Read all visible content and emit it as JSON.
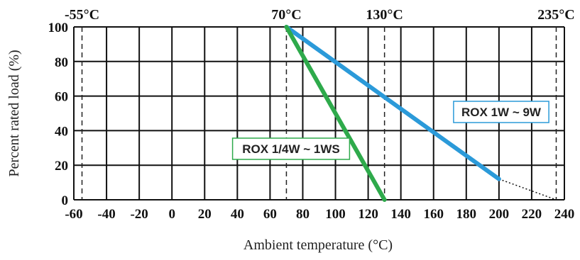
{
  "chart_data": {
    "type": "line",
    "xlabel": "Ambient temperature (°C)",
    "ylabel": "Percent rated load (%)",
    "x_ticks": [
      -60,
      -40,
      -20,
      0,
      20,
      40,
      60,
      80,
      100,
      120,
      140,
      160,
      180,
      200,
      220,
      240
    ],
    "y_ticks": [
      0,
      20,
      40,
      60,
      80,
      100
    ],
    "xlim": [
      -60,
      240
    ],
    "ylim": [
      0,
      100
    ],
    "grid": true,
    "markers": [
      {
        "label": "-55°C",
        "x": -55
      },
      {
        "label": "70°C",
        "x": 70
      },
      {
        "label": "130°C",
        "x": 130
      },
      {
        "label": "235°C",
        "x": 235
      }
    ],
    "series": [
      {
        "name": "ROX 1W ~ 9W",
        "color": "#2b9ad9",
        "x": [
          70,
          200
        ],
        "y": [
          100,
          12
        ],
        "extension": {
          "x": [
            200,
            235
          ],
          "y": [
            12,
            0
          ],
          "style": "dotted"
        }
      },
      {
        "name": "ROX 1/4W ~ 1WS",
        "color": "#2eaa4b",
        "x": [
          70,
          130
        ],
        "y": [
          100,
          0
        ]
      }
    ]
  }
}
